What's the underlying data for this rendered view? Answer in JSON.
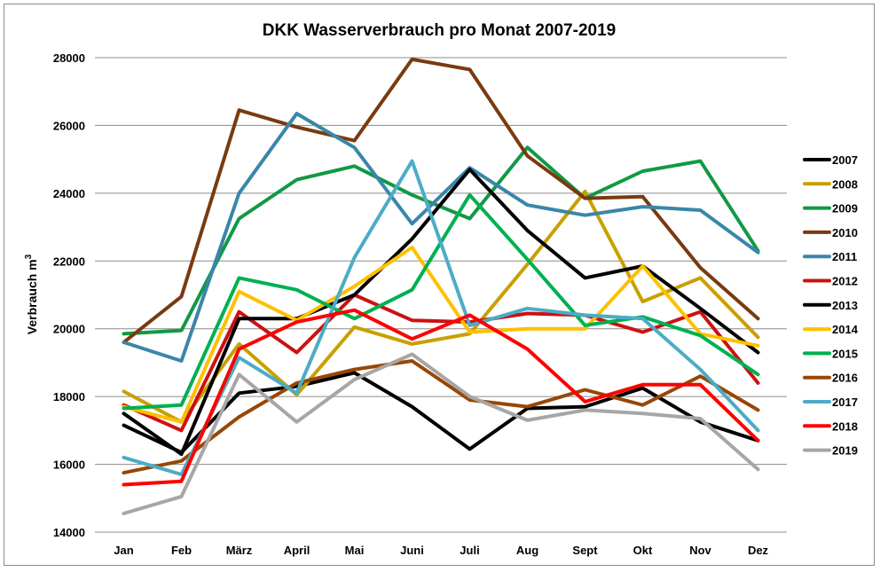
{
  "chart_data": {
    "type": "line",
    "title": "DKK  Wasserverbrauch pro Monat  2007-2019",
    "xlabel": "",
    "ylabel": "Verbrauch m",
    "ylabel_superscript": "3",
    "ylim": [
      14000,
      28000
    ],
    "yticks": [
      14000,
      16000,
      18000,
      20000,
      22000,
      24000,
      26000,
      28000
    ],
    "grid": true,
    "legend_position": "right",
    "categories": [
      "Jan",
      "Feb",
      "März",
      "April",
      "Mai",
      "Juni",
      "Juli",
      "Aug",
      "Sept",
      "Okt",
      "Nov",
      "Dez"
    ],
    "series": [
      {
        "name": "2007",
        "color": "#000000",
        "values": [
          17150,
          16350,
          18100,
          18300,
          18700,
          17700,
          16450,
          17650,
          17700,
          18250,
          17250,
          16700
        ]
      },
      {
        "name": "2008",
        "color": "#c8a000",
        "values": [
          18150,
          17250,
          19550,
          18050,
          20050,
          19550,
          19850,
          21900,
          24050,
          20800,
          21500,
          19750
        ]
      },
      {
        "name": "2009",
        "color": "#119944",
        "values": [
          19850,
          19950,
          23250,
          24400,
          24800,
          23950,
          23250,
          25350,
          23850,
          24650,
          24950,
          22300
        ]
      },
      {
        "name": "2010",
        "color": "#7a3a10",
        "values": [
          19600,
          20950,
          26450,
          25950,
          25550,
          27950,
          27650,
          25100,
          23850,
          23900,
          21800,
          20300
        ]
      },
      {
        "name": "2011",
        "color": "#3a86a8",
        "values": [
          19600,
          19050,
          24000,
          26350,
          25350,
          23100,
          24750,
          23650,
          23350,
          23600,
          23500,
          22250
        ]
      },
      {
        "name": "2012",
        "color": "#cc1111",
        "values": [
          17750,
          17000,
          20500,
          19300,
          21000,
          20250,
          20200,
          20450,
          20400,
          19900,
          20500,
          18400
        ]
      },
      {
        "name": "2013",
        "color": "#000000",
        "values": [
          17500,
          16300,
          20300,
          20300,
          21000,
          22650,
          24700,
          22900,
          21500,
          21850,
          20600,
          19300
        ]
      },
      {
        "name": "2014",
        "color": "#ffc000",
        "values": [
          17700,
          17250,
          21100,
          20250,
          21250,
          22400,
          19900,
          20000,
          20000,
          21850,
          19850,
          19500
        ]
      },
      {
        "name": "2015",
        "color": "#00b050",
        "values": [
          17650,
          17750,
          21500,
          21150,
          20300,
          21150,
          23950,
          22050,
          20100,
          20350,
          19800,
          18650
        ]
      },
      {
        "name": "2016",
        "color": "#974706",
        "values": [
          15750,
          16100,
          17400,
          18400,
          18800,
          19050,
          17900,
          17700,
          18200,
          17750,
          18600,
          17600
        ]
      },
      {
        "name": "2017",
        "color": "#4bacc6",
        "values": [
          16200,
          15700,
          19150,
          18100,
          22100,
          24950,
          20100,
          20600,
          20400,
          20300,
          18800,
          17000
        ]
      },
      {
        "name": "2018",
        "color": "#ff0000",
        "values": [
          15400,
          15500,
          19400,
          20200,
          20550,
          19700,
          20400,
          19400,
          17850,
          18350,
          18350,
          16700
        ]
      },
      {
        "name": "2019",
        "color": "#a6a6a6",
        "values": [
          14550,
          15050,
          18650,
          17250,
          18500,
          19250,
          18000,
          17300,
          17600,
          17500,
          17350,
          15850
        ]
      }
    ]
  }
}
